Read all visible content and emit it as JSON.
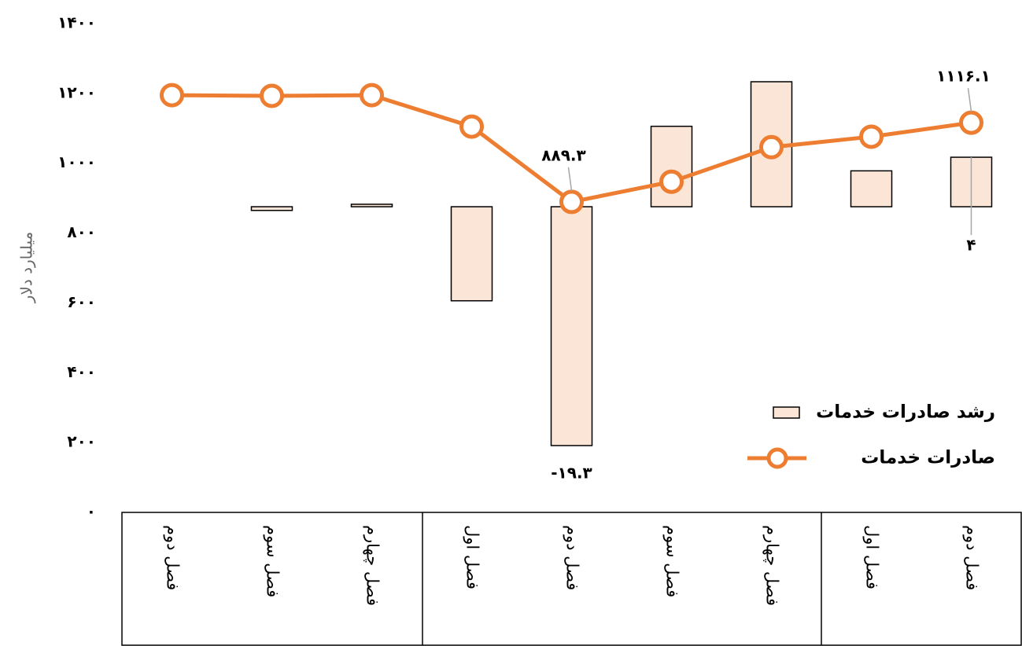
{
  "chart_data": {
    "type": "combo",
    "categories": [
      "فصل دوم",
      "فصل سوم",
      "فصل چهارم",
      "فصل اول",
      "فصل دوم",
      "فصل سوم",
      "فصل چهارم",
      "فصل اول",
      "فصل دوم"
    ],
    "y_axis_label": "میلیارد دلار",
    "ylim": [
      0,
      1400
    ],
    "yticks": [
      {
        "value": 0,
        "label": "۰"
      },
      {
        "value": 200,
        "label": "۲۰۰"
      },
      {
        "value": 400,
        "label": "۴۰۰"
      },
      {
        "value": 600,
        "label": "۶۰۰"
      },
      {
        "value": 800,
        "label": "۸۰۰"
      },
      {
        "value": 1000,
        "label": "۱۰۰۰"
      },
      {
        "value": 1200,
        "label": "۱۲۰۰"
      },
      {
        "value": 1400,
        "label": "۱۴۰۰"
      }
    ],
    "y2lim": [
      -24.7,
      14.8
    ],
    "legend": "right",
    "series": [
      {
        "name": "رشد صادرات خدمات",
        "type": "bar",
        "axis": "y2",
        "color": "#fbe5d6",
        "edge_color": "#000000",
        "values": [
          null,
          -0.3,
          0.2,
          -7.6,
          -19.3,
          6.5,
          10.1,
          2.9,
          4
        ],
        "value_labels": [
          null,
          null,
          null,
          null,
          "-۱۹.۳",
          null,
          null,
          null,
          "۴"
        ]
      },
      {
        "name": "صادرات خدمات",
        "type": "line",
        "color": "#ed7d31",
        "values": [
          1195,
          1193,
          1195,
          1105,
          889.3,
          947,
          1046,
          1076,
          1116.1
        ],
        "value_labels": [
          null,
          null,
          null,
          null,
          "۸۸۹.۳",
          null,
          null,
          null,
          "۱۱۱۶.۱"
        ]
      }
    ]
  }
}
